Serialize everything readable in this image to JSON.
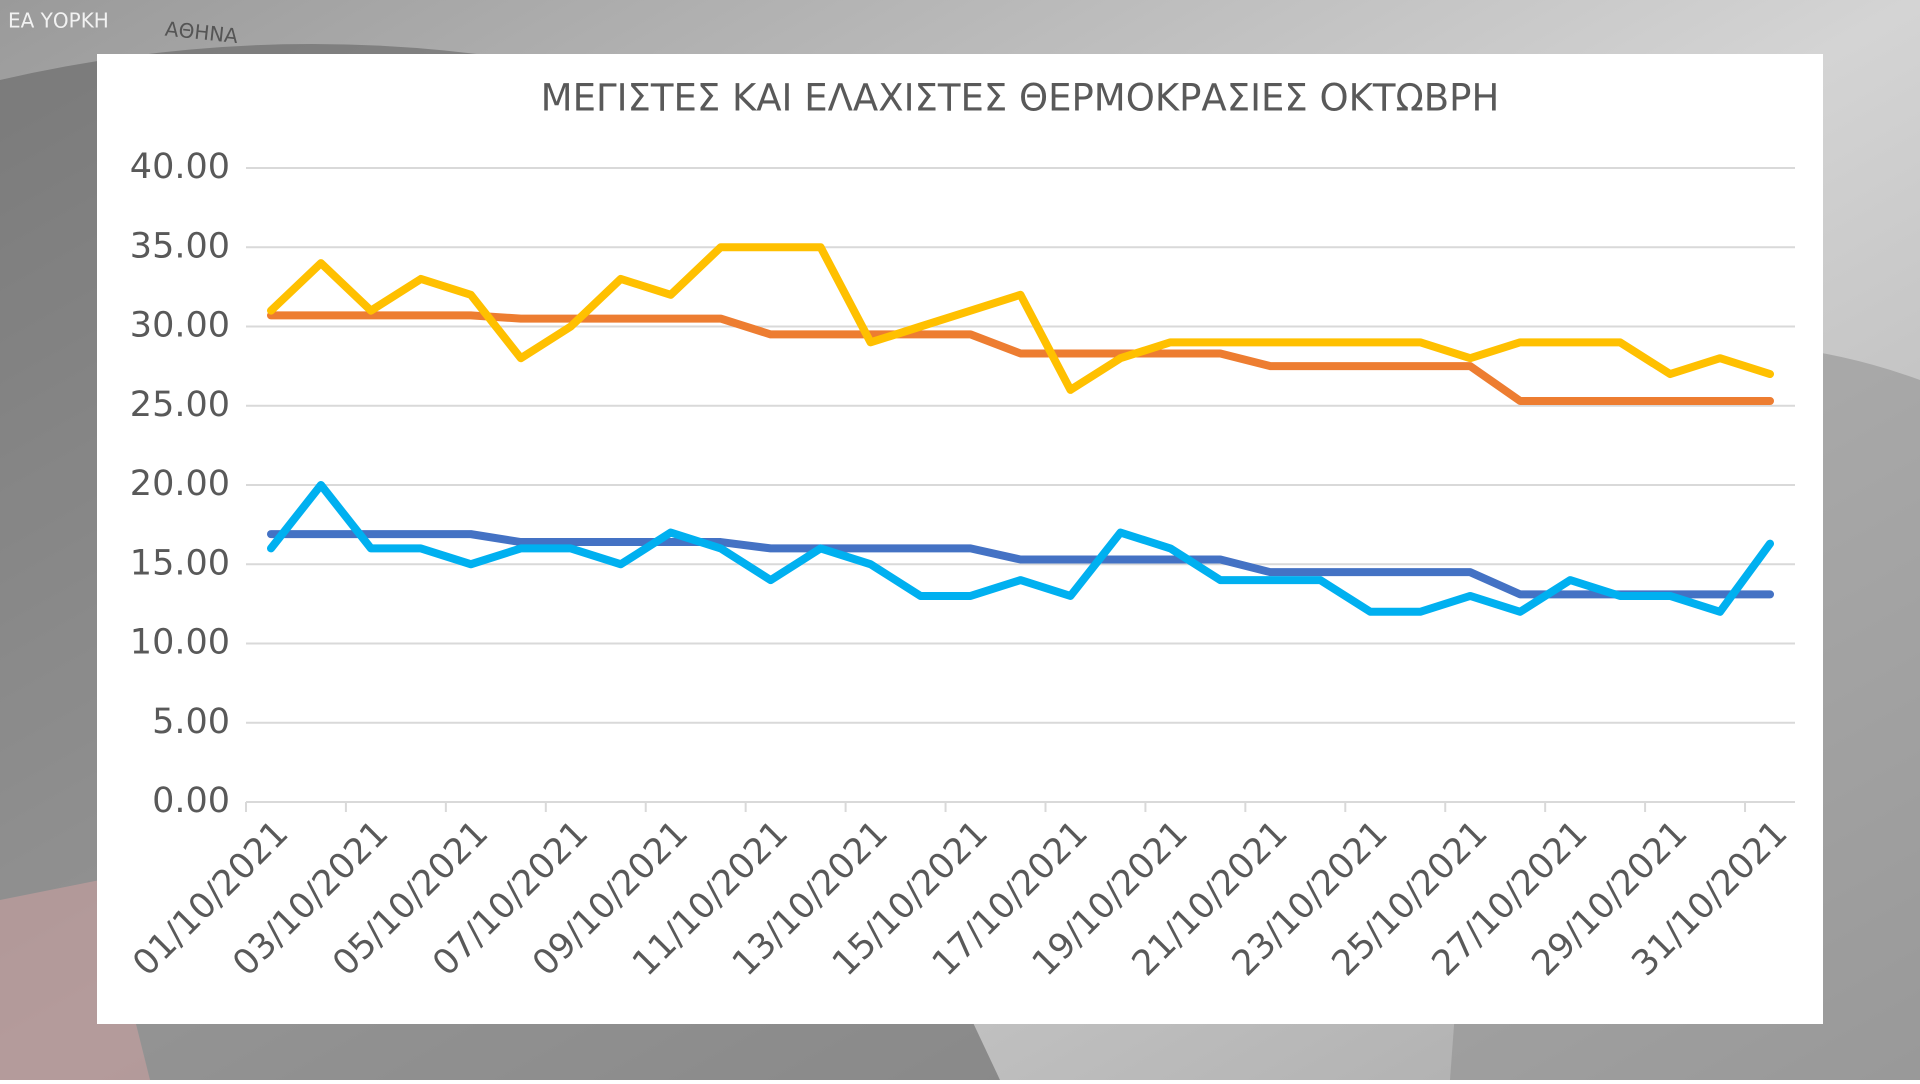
{
  "background_labels": [
    "ΕΑ ΥΟΡΚΗ",
    "ΑΘΗΝΑ"
  ],
  "chart_data": {
    "type": "line",
    "title": "ΜΕΓΙΣΤΕΣ ΚΑΙ ΕΛΑΧΙΣΤΕΣ ΘΕΡΜΟΚΡΑΣΙΕΣ ΟΚΤΩΒΡΗ",
    "categories": [
      "01/10/2021",
      null,
      "03/10/2021",
      null,
      "05/10/2021",
      null,
      "07/10/2021",
      null,
      "09/10/2021",
      null,
      "11/10/2021",
      null,
      "13/10/2021",
      null,
      "15/10/2021",
      null,
      "17/10/2021",
      null,
      "19/10/2021",
      null,
      "21/10/2021",
      null,
      "23/10/2021",
      null,
      "25/10/2021",
      null,
      "27/10/2021",
      null,
      "29/10/2021",
      null,
      "31/10/2021"
    ],
    "series": [
      {
        "color": "#ed7d31",
        "values": [
          30.7,
          30.7,
          30.7,
          30.7,
          30.7,
          30.5,
          30.5,
          30.5,
          30.5,
          30.5,
          29.5,
          29.5,
          29.5,
          29.5,
          29.5,
          28.3,
          28.3,
          28.3,
          28.3,
          28.3,
          27.5,
          27.5,
          27.5,
          27.5,
          27.5,
          25.3,
          25.3,
          25.3,
          25.3,
          25.3,
          25.3
        ]
      },
      {
        "color": "#ffc000",
        "values": [
          31,
          34,
          31,
          33,
          32,
          28,
          30,
          33,
          32,
          35,
          35,
          35,
          29,
          30,
          31,
          32,
          26,
          28,
          29,
          29,
          29,
          29,
          29,
          29,
          28,
          29,
          29,
          29,
          27,
          28,
          27
        ]
      },
      {
        "color": "#4472c4",
        "values": [
          16.9,
          16.9,
          16.9,
          16.9,
          16.9,
          16.4,
          16.4,
          16.4,
          16.4,
          16.4,
          16.0,
          16.0,
          16.0,
          16.0,
          16.0,
          15.3,
          15.3,
          15.3,
          15.3,
          15.3,
          14.5,
          14.5,
          14.5,
          14.5,
          14.5,
          13.1,
          13.1,
          13.1,
          13.1,
          13.1,
          13.1
        ]
      },
      {
        "color": "#00b0f0",
        "values": [
          16,
          20,
          16,
          16,
          15,
          16,
          16,
          15,
          17,
          16,
          14,
          16,
          15,
          13,
          13,
          14,
          13,
          17,
          16,
          14,
          14,
          14,
          12,
          12,
          13,
          12,
          14,
          13,
          13,
          12,
          16.3
        ]
      }
    ],
    "ylim": [
      0,
      40
    ],
    "yticks": [
      {
        "value": 0,
        "label": "0.00"
      },
      {
        "value": 5,
        "label": "5.00"
      },
      {
        "value": 10,
        "label": "10.00"
      },
      {
        "value": 15,
        "label": "15.00"
      },
      {
        "value": 20,
        "label": "20.00"
      },
      {
        "value": 25,
        "label": "25.00"
      },
      {
        "value": 30,
        "label": "30.00"
      },
      {
        "value": 35,
        "label": "35.00"
      },
      {
        "value": 40,
        "label": "40.00"
      }
    ],
    "grid": true
  }
}
